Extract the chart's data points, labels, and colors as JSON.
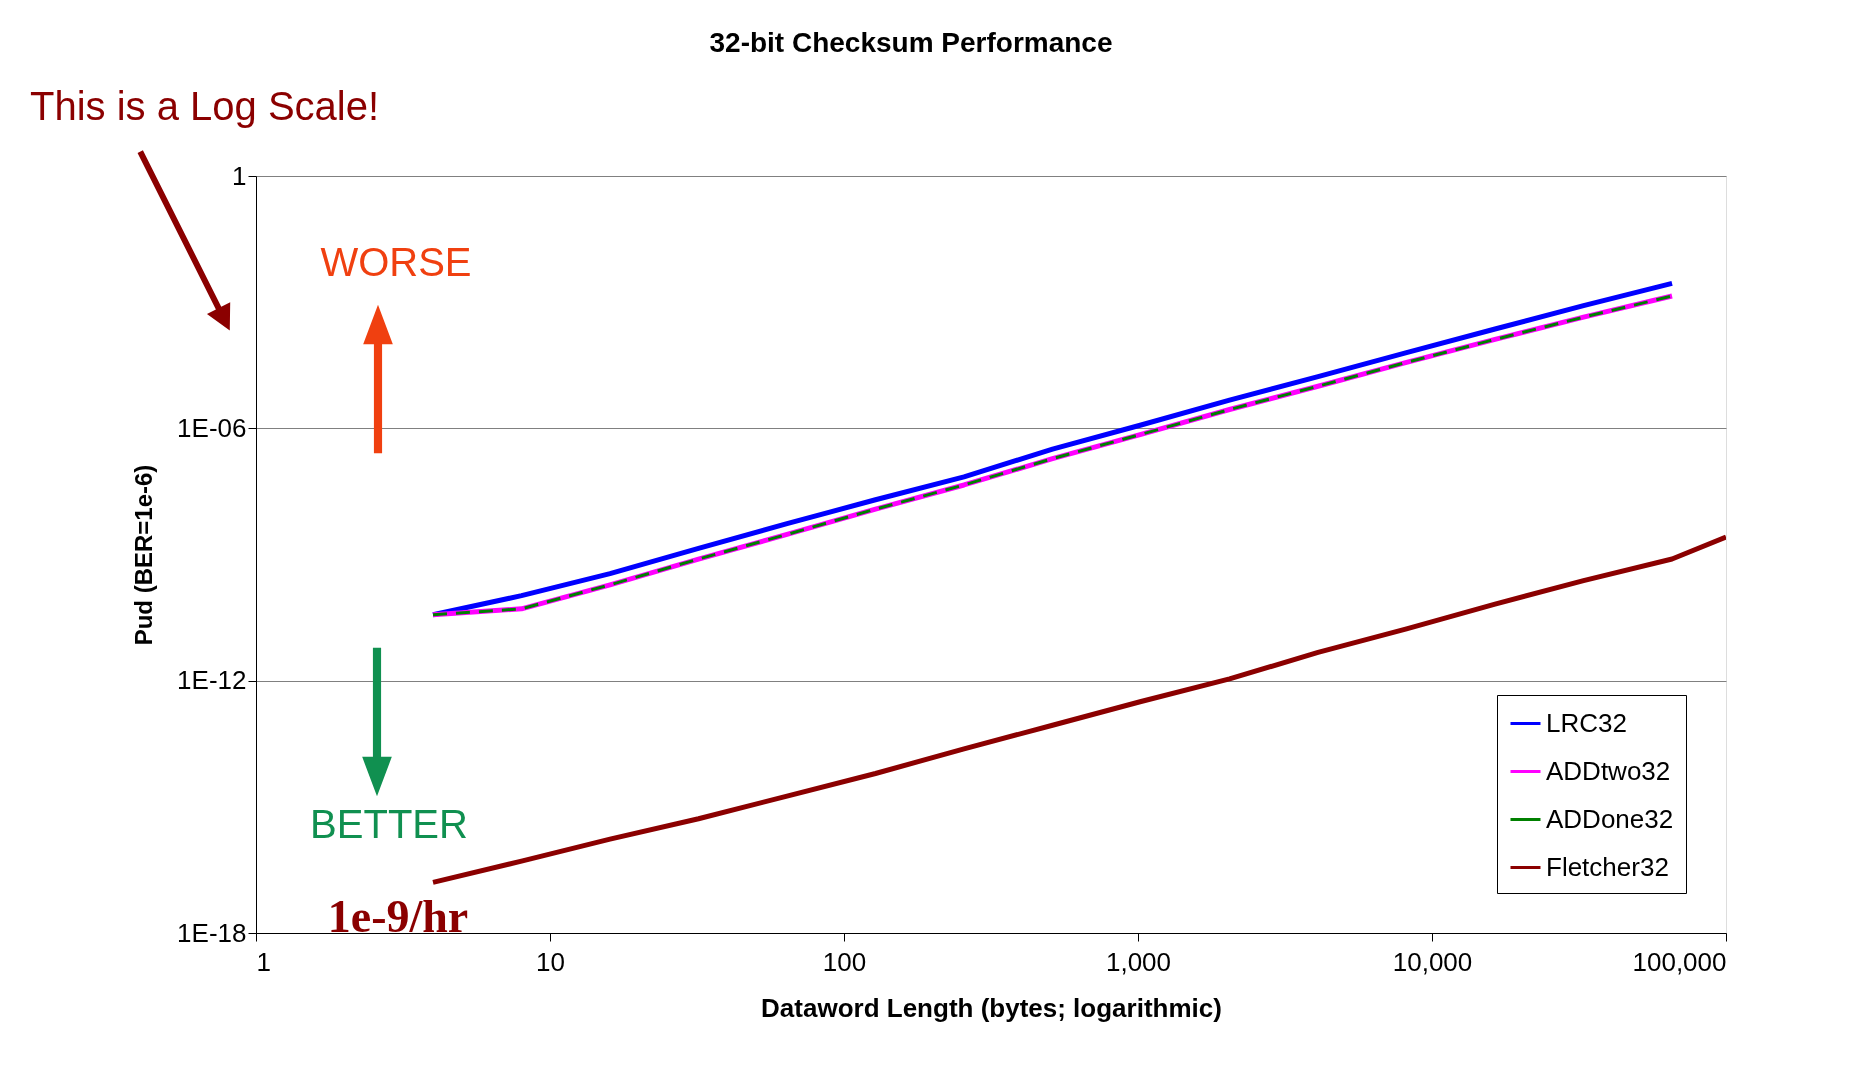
{
  "chart_data": {
    "type": "line",
    "title": "32-bit Checksum Performance",
    "xlabel": "Dataword Length (bytes; logarithmic)",
    "ylabel": "Pud (BER=1e-6)",
    "log": "xy",
    "grid": "y",
    "legend": "bottom right",
    "xlim": [
      1,
      100000
    ],
    "ylim": [
      1e-18,
      1
    ],
    "xticks": [
      1,
      10,
      100,
      {
        "value": 1000,
        "label": "1,000"
      },
      {
        "value": 10000,
        "label": "10,000"
      },
      {
        "value": 100000,
        "label": "100,000"
      }
    ],
    "yticks": [
      {
        "value": 1e-18,
        "label": "1E-18"
      },
      {
        "value": 1e-12,
        "label": "1E-12"
      },
      {
        "value": 1e-06,
        "label": "1E-06"
      },
      1
    ],
    "x": [
      4,
      8,
      16,
      32,
      64,
      128,
      256,
      512,
      1024,
      2048,
      4096,
      8192,
      16384,
      32768,
      65536
    ],
    "series": [
      {
        "name": "LRC32",
        "color": "#0000ff",
        "line_style": "solid",
        "values": [
          3.7e-11,
          1.05e-10,
          3.5e-10,
          1.4e-09,
          5.4e-09,
          2e-08,
          7e-08,
          3.2e-07,
          1.2e-06,
          4.7e-06,
          1.7e-05,
          6.3e-05,
          0.00023,
          0.00083,
          0.0028
        ]
      },
      {
        "name": "ADDtwo32",
        "color": "#ff00ff",
        "line_style": "solid",
        "values": [
          3.7e-11,
          5.1e-11,
          1.9e-10,
          7.8e-10,
          3e-09,
          1.2e-08,
          4.5e-08,
          1.9e-07,
          7.2e-07,
          2.8e-06,
          1e-05,
          3.7e-05,
          0.00013,
          0.00044,
          0.0014
        ]
      },
      {
        "name": "ADDone32",
        "color": "#008000",
        "line_style": "dashed",
        "values": [
          3.7e-11,
          5.1e-11,
          1.9e-10,
          7.8e-10,
          3e-09,
          1.2e-08,
          4.5e-08,
          1.9e-07,
          7.2e-07,
          2.8e-06,
          1e-05,
          3.7e-05,
          0.00013,
          0.00044,
          0.0014
        ]
      },
      {
        "name": "Fletcher32",
        "color": "#8b0000",
        "line_style": "solid",
        "x": [
          4,
          8,
          16,
          32,
          64,
          128,
          256,
          512,
          1024,
          2048,
          4096,
          8192,
          16384,
          32768,
          65536,
          100000
        ],
        "values": [
          1.6e-17,
          5.1e-17,
          1.7e-16,
          5.2e-16,
          1.8e-15,
          6.2e-15,
          2.4e-14,
          8.7e-14,
          3.2e-13,
          1.1e-12,
          4.7e-12,
          1.7e-11,
          6.6e-11,
          2.4e-10,
          7.8e-10,
          2.6e-09
        ]
      }
    ],
    "annotations": [
      "This is a Log Scale!",
      "WORSE",
      "BETTER",
      "1e-9/hr"
    ]
  }
}
